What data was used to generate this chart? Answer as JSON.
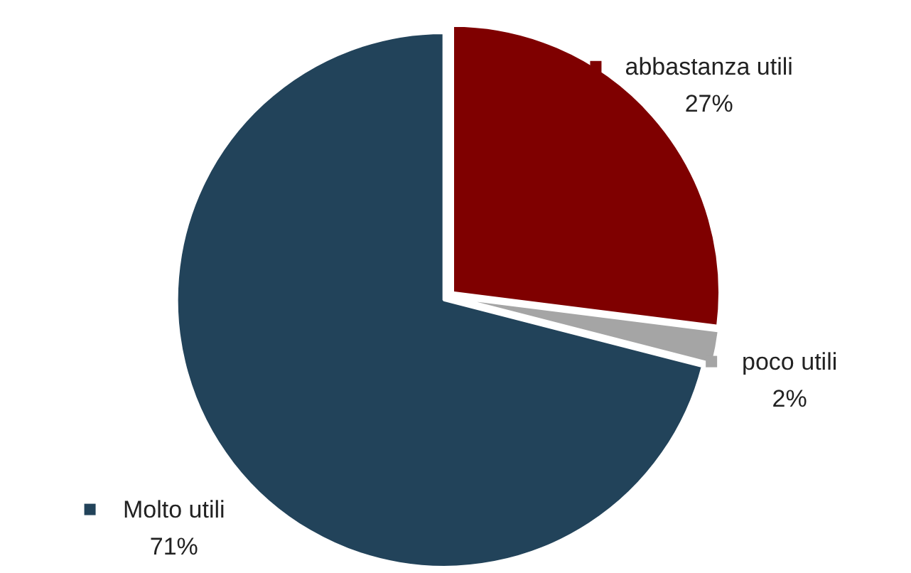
{
  "chart_data": {
    "type": "pie",
    "categories": [
      "abbastanza utili",
      "poco utili",
      "Molto utili"
    ],
    "values": [
      27,
      2,
      71
    ],
    "colors": [
      "#7f0000",
      "#a5a5a5",
      "#22435a"
    ],
    "value_labels": [
      "27%",
      "2%",
      "71%"
    ],
    "legend": "right"
  }
}
